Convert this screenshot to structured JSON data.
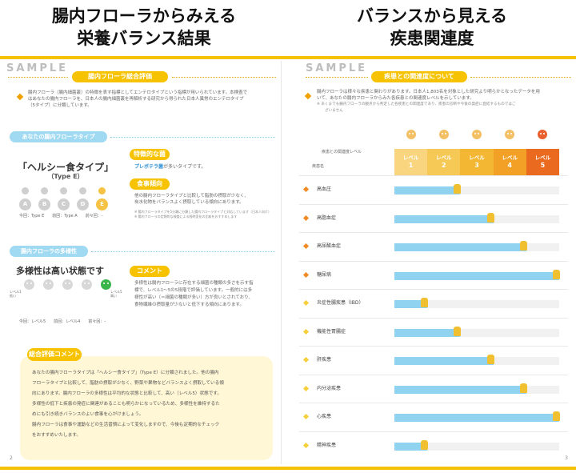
{
  "headings": {
    "left": [
      "腸内フローラからみえる",
      "栄養バランス結果"
    ],
    "right": [
      "バランスから見える",
      "疾患関連度"
    ]
  },
  "left_page": {
    "sample": "SAMPLE",
    "section_pill": "腸内フローラ総合評価",
    "intro": [
      "腸内フローラ（腸内細菌叢）の特徴を表す指標としてエンテロタイプという指標が用いられています。本検査で",
      "はあなたの腸内フローラを、日本人の腸内細菌叢を再解析する研究から得られた日本人異常のエンテロタイプ",
      "（5タイプ）に分類しています。"
    ],
    "type_pill": "あなたの腸内フローラタイプ",
    "type_name": "「ヘルシー食タイプ」",
    "type_code": "（Type E）",
    "type_letters": [
      "A",
      "B",
      "C",
      "D",
      "E"
    ],
    "type_active_index": 4,
    "type_foot": "今回：Type E　　前回：Type A　　前々回：-",
    "feature_pill": "特徴的な菌",
    "feature_text_accent": "プレボテラ菌",
    "feature_text_rest": "が多いタイプです。",
    "food_pill": "食事傾向",
    "food_text": [
      "他の腸内フローラタイプと比較して脂肪の摂取が少なく、",
      "炭水化物をバランスよく摂取している傾向にあります。"
    ],
    "food_note": [
      "※ 腸内フローラタイプを5分類に分類した腸内フローラタイプと対応しています（日本人向け）",
      "※ 腸内フローラの定期的な検査による経時変化の比較をおすすめします"
    ],
    "diversity_pill": "腸内フローラの多様性",
    "diversity_title": "多様性は高い状態です",
    "diversity_active_index": 4,
    "diversity_low": "レベル1 低い",
    "diversity_high": "レベル5 高い",
    "diversity_foot": "今回：レベル5　　前回：レベル4　　前々回：-",
    "comment_pill": "コメント",
    "comment_text": [
      "多様性は腸内フローラに存在する細菌の種類の多さを示す指",
      "標で、レベル1〜5の5段階で評価しています。一般的には多",
      "様性が高い（＝細菌の種類が多い）方が良いとされており、",
      "食物繊維の摂取量が少ないと低下する傾向にあります。"
    ],
    "summary_pill": "総合評価コメント",
    "summary_text": [
      "あなたの腸内フローラタイプは「ヘルシー食タイプ」（Type E）に分類されました。他の腸内",
      "フローラタイプと比較して、脂肪の摂取が少なく、野菜や果物などバランスよく摂取している傾",
      "向にあります。腸内フローラの多様性は平均的な状態と比較して、高い（レベル5）状態です。",
      "多様性の低下と疾患の発症に関連があることも明らかになっているため、多様性を維持するた",
      "めにも引き続きバランスのよい食事を心がけましょう。",
      "腸内フローラは食事や運動などの生活習慣によって変化しますので、今後も定期的なチェック",
      "をおすすめいたします。"
    ],
    "page_number": "2"
  },
  "right_page": {
    "sample": "SAMPLE",
    "section_pill": "疾患との関連度について",
    "intro": [
      "腸内フローラは様々な疾患と関わりがあります。日本人1,803名を対象とした研究より明らかとなったデータを用",
      "いて、あなたの腸内フローラからみた各疾患との関連度レベルを示しています。",
      "※ あくまでも腸内フローラの観点から判定した各疾患との関連度であり、疾患の診断や今後の発症に直結するものではご",
      "ざいません"
    ],
    "header_label": "疾患との関連度レベル",
    "col_label": "疾患名",
    "levels": [
      {
        "label": "レベル",
        "num": "1",
        "color": "#f8d57e"
      },
      {
        "label": "レベル",
        "num": "2",
        "color": "#f6c957"
      },
      {
        "label": "レベル",
        "num": "3",
        "color": "#f4b733"
      },
      {
        "label": "レベル",
        "num": "4",
        "color": "#f2a126"
      },
      {
        "label": "レベル",
        "num": "5",
        "color": "#ea6b1f"
      }
    ],
    "diseases": [
      {
        "name": "高血圧",
        "level": 2,
        "icon": "orange-diamond"
      },
      {
        "name": "高脂血症",
        "level": 3,
        "icon": "orange-diamond"
      },
      {
        "name": "高尿酸血症",
        "level": 4,
        "icon": "orange-diamond"
      },
      {
        "name": "糖尿病",
        "level": 5,
        "icon": "orange-diamond"
      },
      {
        "name": "炎症性腸疾患（IBD）",
        "level": 1,
        "icon": "yellow-diamond"
      },
      {
        "name": "機能性胃腸症",
        "level": 2,
        "icon": "yellow-diamond"
      },
      {
        "name": "肝疾患",
        "level": 3,
        "icon": "yellow-diamond"
      },
      {
        "name": "内分泌疾患",
        "level": 4,
        "icon": "yellow-diamond"
      },
      {
        "name": "心疾患",
        "level": 5,
        "icon": "yellow-diamond"
      },
      {
        "name": "精神疾患",
        "level": 1,
        "icon": "yellow-diamond"
      }
    ],
    "page_number": "3"
  },
  "colors": {
    "accent": "#f5c200",
    "bar": "#8fd3f1",
    "lock": "#f0c030"
  }
}
